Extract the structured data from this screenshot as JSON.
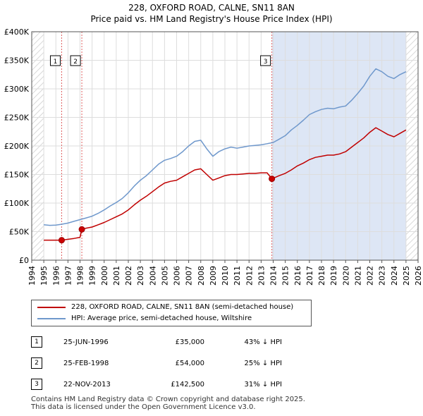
{
  "chart_data": {
    "type": "line",
    "title": "228, OXFORD ROAD, CALNE, SN11 8AN",
    "subtitle": "Price paid vs. HM Land Registry's House Price Index (HPI)",
    "x_range": [
      1994,
      2026
    ],
    "ylim": [
      0,
      400000
    ],
    "xticks": [
      "1994",
      "1995",
      "1996",
      "1997",
      "1998",
      "1999",
      "2000",
      "2001",
      "2002",
      "2003",
      "2004",
      "2005",
      "2006",
      "2007",
      "2008",
      "2009",
      "2010",
      "2011",
      "2012",
      "2013",
      "2014",
      "2015",
      "2016",
      "2017",
      "2018",
      "2019",
      "2020",
      "2021",
      "2022",
      "2023",
      "2024",
      "2025",
      "2026"
    ],
    "yticks": [
      {
        "value": 0,
        "label": "£0"
      },
      {
        "value": 50000,
        "label": "£50K"
      },
      {
        "value": 100000,
        "label": "£100K"
      },
      {
        "value": 150000,
        "label": "£150K"
      },
      {
        "value": 200000,
        "label": "£200K"
      },
      {
        "value": 250000,
        "label": "£250K"
      },
      {
        "value": 300000,
        "label": "£300K"
      },
      {
        "value": 350000,
        "label": "£350K"
      },
      {
        "value": 400000,
        "label": "£400K"
      }
    ],
    "hatch_before": 1995.0,
    "hatch_after": 2025.0,
    "shade_range": [
      2013.9,
      2025.0
    ],
    "series": [
      {
        "name": "HPI: Average price, semi-detached house, Wiltshire",
        "color": "#6f98cc",
        "x": [
          1995.0,
          1995.5,
          1996.0,
          1996.5,
          1997.0,
          1997.5,
          1998.0,
          1998.5,
          1999.0,
          1999.5,
          2000.0,
          2000.5,
          2001.0,
          2001.5,
          2002.0,
          2002.5,
          2003.0,
          2003.5,
          2004.0,
          2004.5,
          2005.0,
          2005.5,
          2006.0,
          2006.5,
          2007.0,
          2007.5,
          2008.0,
          2008.5,
          2009.0,
          2009.5,
          2010.0,
          2010.5,
          2011.0,
          2011.5,
          2012.0,
          2012.5,
          2013.0,
          2013.5,
          2014.0,
          2014.5,
          2015.0,
          2015.5,
          2016.0,
          2016.5,
          2017.0,
          2017.5,
          2018.0,
          2018.5,
          2019.0,
          2019.5,
          2020.0,
          2020.5,
          2021.0,
          2021.5,
          2022.0,
          2022.5,
          2023.0,
          2023.5,
          2024.0,
          2024.5,
          2025.0
        ],
        "y": [
          62000,
          61000,
          61500,
          63000,
          65000,
          68000,
          71000,
          74000,
          77000,
          82000,
          88000,
          95000,
          101000,
          108000,
          118000,
          130000,
          140000,
          148000,
          158000,
          168000,
          175000,
          178000,
          182000,
          190000,
          200000,
          208000,
          210000,
          195000,
          182000,
          190000,
          195000,
          198000,
          196000,
          198000,
          200000,
          201000,
          202000,
          204000,
          206000,
          212000,
          218000,
          228000,
          236000,
          245000,
          255000,
          260000,
          264000,
          266000,
          265000,
          268000,
          270000,
          280000,
          292000,
          305000,
          322000,
          335000,
          330000,
          322000,
          318000,
          325000,
          330000
        ]
      },
      {
        "name": "228, OXFORD ROAD, CALNE, SN11 8AN (semi-detached house)",
        "color": "#c00000",
        "x": [
          1995.0,
          1995.5,
          1996.0,
          1996.48,
          1997.0,
          1997.5,
          1998.0,
          1998.15,
          1998.5,
          1999.0,
          1999.5,
          2000.0,
          2000.5,
          2001.0,
          2001.5,
          2002.0,
          2002.5,
          2003.0,
          2003.5,
          2004.0,
          2004.5,
          2005.0,
          2005.5,
          2006.0,
          2006.5,
          2007.0,
          2007.5,
          2008.0,
          2008.5,
          2009.0,
          2009.5,
          2010.0,
          2010.5,
          2011.0,
          2011.5,
          2012.0,
          2012.5,
          2013.0,
          2013.5,
          2013.89,
          2014.0,
          2014.5,
          2015.0,
          2015.5,
          2016.0,
          2016.5,
          2017.0,
          2017.5,
          2018.0,
          2018.5,
          2019.0,
          2019.5,
          2020.0,
          2020.5,
          2021.0,
          2021.5,
          2022.0,
          2022.5,
          2023.0,
          2023.5,
          2024.0,
          2024.5,
          2025.0
        ],
        "y": [
          35000,
          35000,
          35000,
          35000,
          36500,
          38000,
          40000,
          54000,
          56000,
          58000,
          62000,
          66000,
          71000,
          76000,
          81000,
          88000,
          97000,
          105000,
          112000,
          120000,
          128000,
          135000,
          138000,
          140000,
          146000,
          152000,
          158000,
          160000,
          150000,
          140000,
          144000,
          148000,
          150000,
          150000,
          151000,
          152000,
          152000,
          153000,
          153000,
          142500,
          143500,
          148000,
          152000,
          158000,
          165000,
          170000,
          176000,
          180000,
          182000,
          184000,
          184000,
          186000,
          190000,
          198000,
          206000,
          214000,
          224000,
          232000,
          226000,
          220000,
          216000,
          222000,
          228000
        ]
      }
    ],
    "sales": [
      {
        "num": "1",
        "x": 1996.48,
        "y": 35000
      },
      {
        "num": "2",
        "x": 1998.15,
        "y": 54000
      },
      {
        "num": "3",
        "x": 2013.89,
        "y": 142500
      }
    ]
  },
  "legend": {
    "property_label": "228, OXFORD ROAD, CALNE, SN11 8AN (semi-detached house)",
    "hpi_label": "HPI: Average price, semi-detached house, Wiltshire",
    "property_color": "#c00000",
    "hpi_color": "#6f98cc"
  },
  "transactions": [
    {
      "num": "1",
      "date": "25-JUN-1996",
      "price": "£35,000",
      "diff": "43% ↓ HPI"
    },
    {
      "num": "2",
      "date": "25-FEB-1998",
      "price": "£54,000",
      "diff": "25% ↓ HPI"
    },
    {
      "num": "3",
      "date": "22-NOV-2013",
      "price": "£142,500",
      "diff": "31% ↓ HPI"
    }
  ],
  "footer": {
    "line1": "Contains HM Land Registry data © Crown copyright and database right 2025.",
    "line2": "This data is licensed under the Open Government Licence v3.0."
  }
}
